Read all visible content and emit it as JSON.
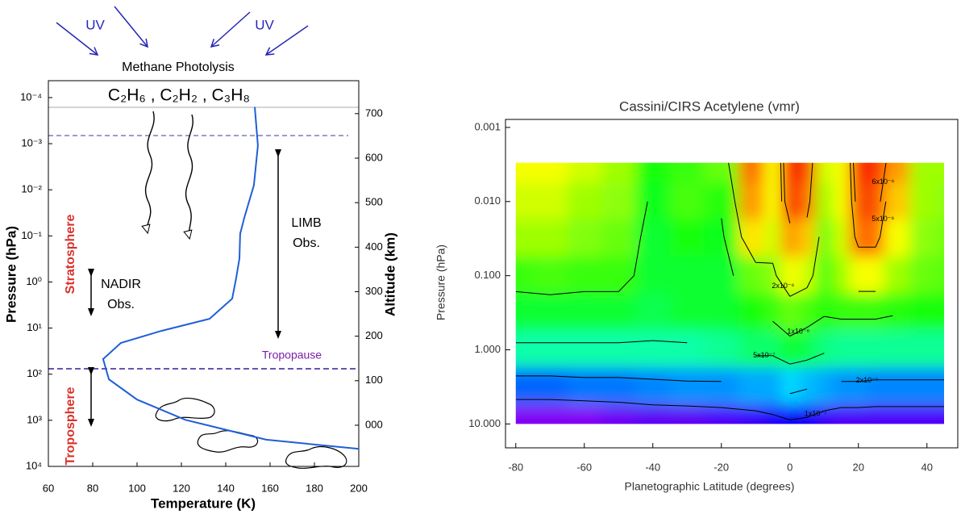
{
  "chart_data": [
    {
      "type": "line",
      "xlabel": "Temperature (K)",
      "ylabel": "Pressure (hPa)",
      "y2label": "Altitude (km)",
      "annotations": [
        "UV",
        "UV",
        "Methane Photolysis",
        "C₂H₆ , C₂H₂ , C₃H₈",
        "LIMB",
        "Obs.",
        "NADIR",
        "Obs.",
        "Stratosphere",
        "Troposphere",
        "Tropopause"
      ],
      "x": [
        153.1,
        154.5,
        152.7,
        148.4,
        146.5,
        146.2,
        144.7,
        142.9,
        132.7,
        110.9,
        92.7,
        84.7,
        87.3,
        100,
        121.8,
        158.2,
        200
      ],
      "values": [
        0.00016,
        0.0011,
        0.008,
        0.04,
        0.09,
        0.31,
        0.83,
        2.3,
        6.3,
        11.5,
        21,
        47,
        129,
        355,
        977,
        2630,
        4170
      ],
      "color": "#1f5fd6",
      "xlim": [
        60,
        200
      ],
      "xticks": [
        60,
        80,
        100,
        120,
        140,
        160,
        180,
        200
      ],
      "log_y": true,
      "ylim": [
        10000,
        4.3e-05
      ],
      "yticks": [
        {
          "value": 0.0001,
          "label": "10⁻⁴"
        },
        {
          "value": 0.001,
          "label": "10⁻³"
        },
        {
          "value": 0.01,
          "label": "10⁻²"
        },
        {
          "value": 0.1,
          "label": "10⁻¹"
        },
        {
          "value": 1,
          "label": "10⁰"
        },
        {
          "value": 10,
          "label": "10¹"
        },
        {
          "value": 100,
          "label": "10²"
        },
        {
          "value": 1000,
          "label": "10³"
        },
        {
          "value": 10000,
          "label": "10⁴"
        }
      ],
      "y2lim": [
        -92.5,
        774
      ],
      "y2ticks": [
        {
          "value": 0,
          "label": "000"
        },
        100,
        200,
        300,
        400,
        500,
        600,
        700
      ]
    },
    {
      "type": "contour",
      "title": "Cassini/CIRS Acetylene (vmr)",
      "xlabel": "Planetographic Latitude (degrees)",
      "ylabel": "Pressure (hPa)",
      "x": [
        -80,
        -70,
        -60,
        -50,
        -40,
        -30,
        -20,
        -10,
        -5,
        0,
        5,
        10,
        15,
        20,
        25,
        30,
        40,
        45
      ],
      "y": [
        0.003,
        0.01,
        0.03,
        0.1,
        0.3,
        1,
        3,
        10
      ],
      "z": [
        [
          3e-06,
          3e-06,
          2.5e-06,
          2e-06,
          1e-06,
          1.2e-06,
          1.5e-06,
          6e-06,
          3e-06,
          9e-06,
          7e-06,
          2.5e-06,
          3e-06,
          8e-06,
          8e-06,
          5e-06,
          2e-06,
          2e-06
        ],
        [
          2.5e-06,
          2.5e-06,
          2e-06,
          1.8e-06,
          9e-07,
          1.3e-06,
          1.1e-06,
          5e-06,
          3e-06,
          8e-06,
          6e-06,
          2e-06,
          3e-06,
          7e-06,
          7e-06,
          4e-06,
          2e-06,
          1.8e-06
        ],
        [
          2e-06,
          2e-06,
          1.7e-06,
          1.5e-06,
          8e-07,
          1e-06,
          9e-07,
          3.5e-06,
          2.5e-06,
          5e-06,
          4e-06,
          1.5e-06,
          2.5e-06,
          6e-06,
          6e-06,
          3e-06,
          1.8e-06,
          1.6e-06
        ],
        [
          1.2e-06,
          1.3e-06,
          1.2e-06,
          1.2e-06,
          8e-07,
          8e-07,
          8e-07,
          1.5e-06,
          1.8e-06,
          3e-06,
          2.5e-06,
          1.3e-06,
          2e-06,
          3e-06,
          3e-06,
          2e-06,
          1.5e-06,
          1.4e-06
        ],
        [
          8e-07,
          8e-07,
          8e-07,
          8e-07,
          7e-07,
          8e-07,
          8e-07,
          1e-06,
          1.2e-06,
          1.5e-06,
          1.3e-06,
          1.1e-06,
          1.2e-06,
          1.2e-06,
          1.2e-06,
          1.1e-06,
          1e-06,
          1e-06
        ],
        [
          4.5e-07,
          4.5e-07,
          4.5e-07,
          4.5e-07,
          4.5e-07,
          4.5e-07,
          5e-07,
          6e-07,
          6e-07,
          8e-07,
          7e-07,
          5.5e-07,
          5e-07,
          5e-07,
          5e-07,
          5e-07,
          5e-07,
          5e-07
        ],
        [
          1.5e-07,
          1.5e-07,
          1.6e-07,
          1.6e-07,
          1.7e-07,
          1.8e-07,
          1.8e-07,
          2e-07,
          2e-07,
          2.5e-07,
          2.2e-07,
          2e-07,
          1.8e-07,
          1.8e-07,
          1.7e-07,
          1.7e-07,
          1.7e-07,
          1.7e-07
        ],
        [
          5e-08,
          5e-08,
          5e-08,
          5.5e-08,
          6e-08,
          6e-08,
          6.5e-08,
          7e-08,
          8e-08,
          9e-08,
          8.5e-08,
          7e-08,
          6.5e-08,
          6.5e-08,
          6.5e-08,
          6.5e-08,
          6.5e-08,
          6.5e-08
        ]
      ],
      "levels": [
        {
          "value": 1e-07,
          "label": "1x10⁻⁷"
        },
        {
          "value": 2e-07,
          "label": "2x10⁻⁷"
        },
        {
          "value": 5e-07,
          "label": "5x10⁻⁷"
        },
        {
          "value": 1e-06,
          "label": "1x10⁻⁶"
        },
        {
          "value": 2e-06,
          "label": "2x10⁻⁶"
        },
        {
          "value": 5e-06,
          "label": "5x10⁻⁶"
        },
        {
          "value": 6e-06,
          "label": "6x10⁻⁶"
        }
      ],
      "xlim": [
        -83,
        49
      ],
      "xticks": [
        -80,
        -60,
        -40,
        -20,
        0,
        20,
        40
      ],
      "log_y": true,
      "ylim": [
        21,
        0.00078
      ],
      "yticks": [
        {
          "value": 0.001,
          "label": "0.001"
        },
        {
          "value": 0.01,
          "label": "0.010"
        },
        {
          "value": 0.1,
          "label": "0.100"
        },
        {
          "value": 1,
          "label": "1.000"
        },
        {
          "value": 10,
          "label": "10.000"
        }
      ]
    }
  ]
}
